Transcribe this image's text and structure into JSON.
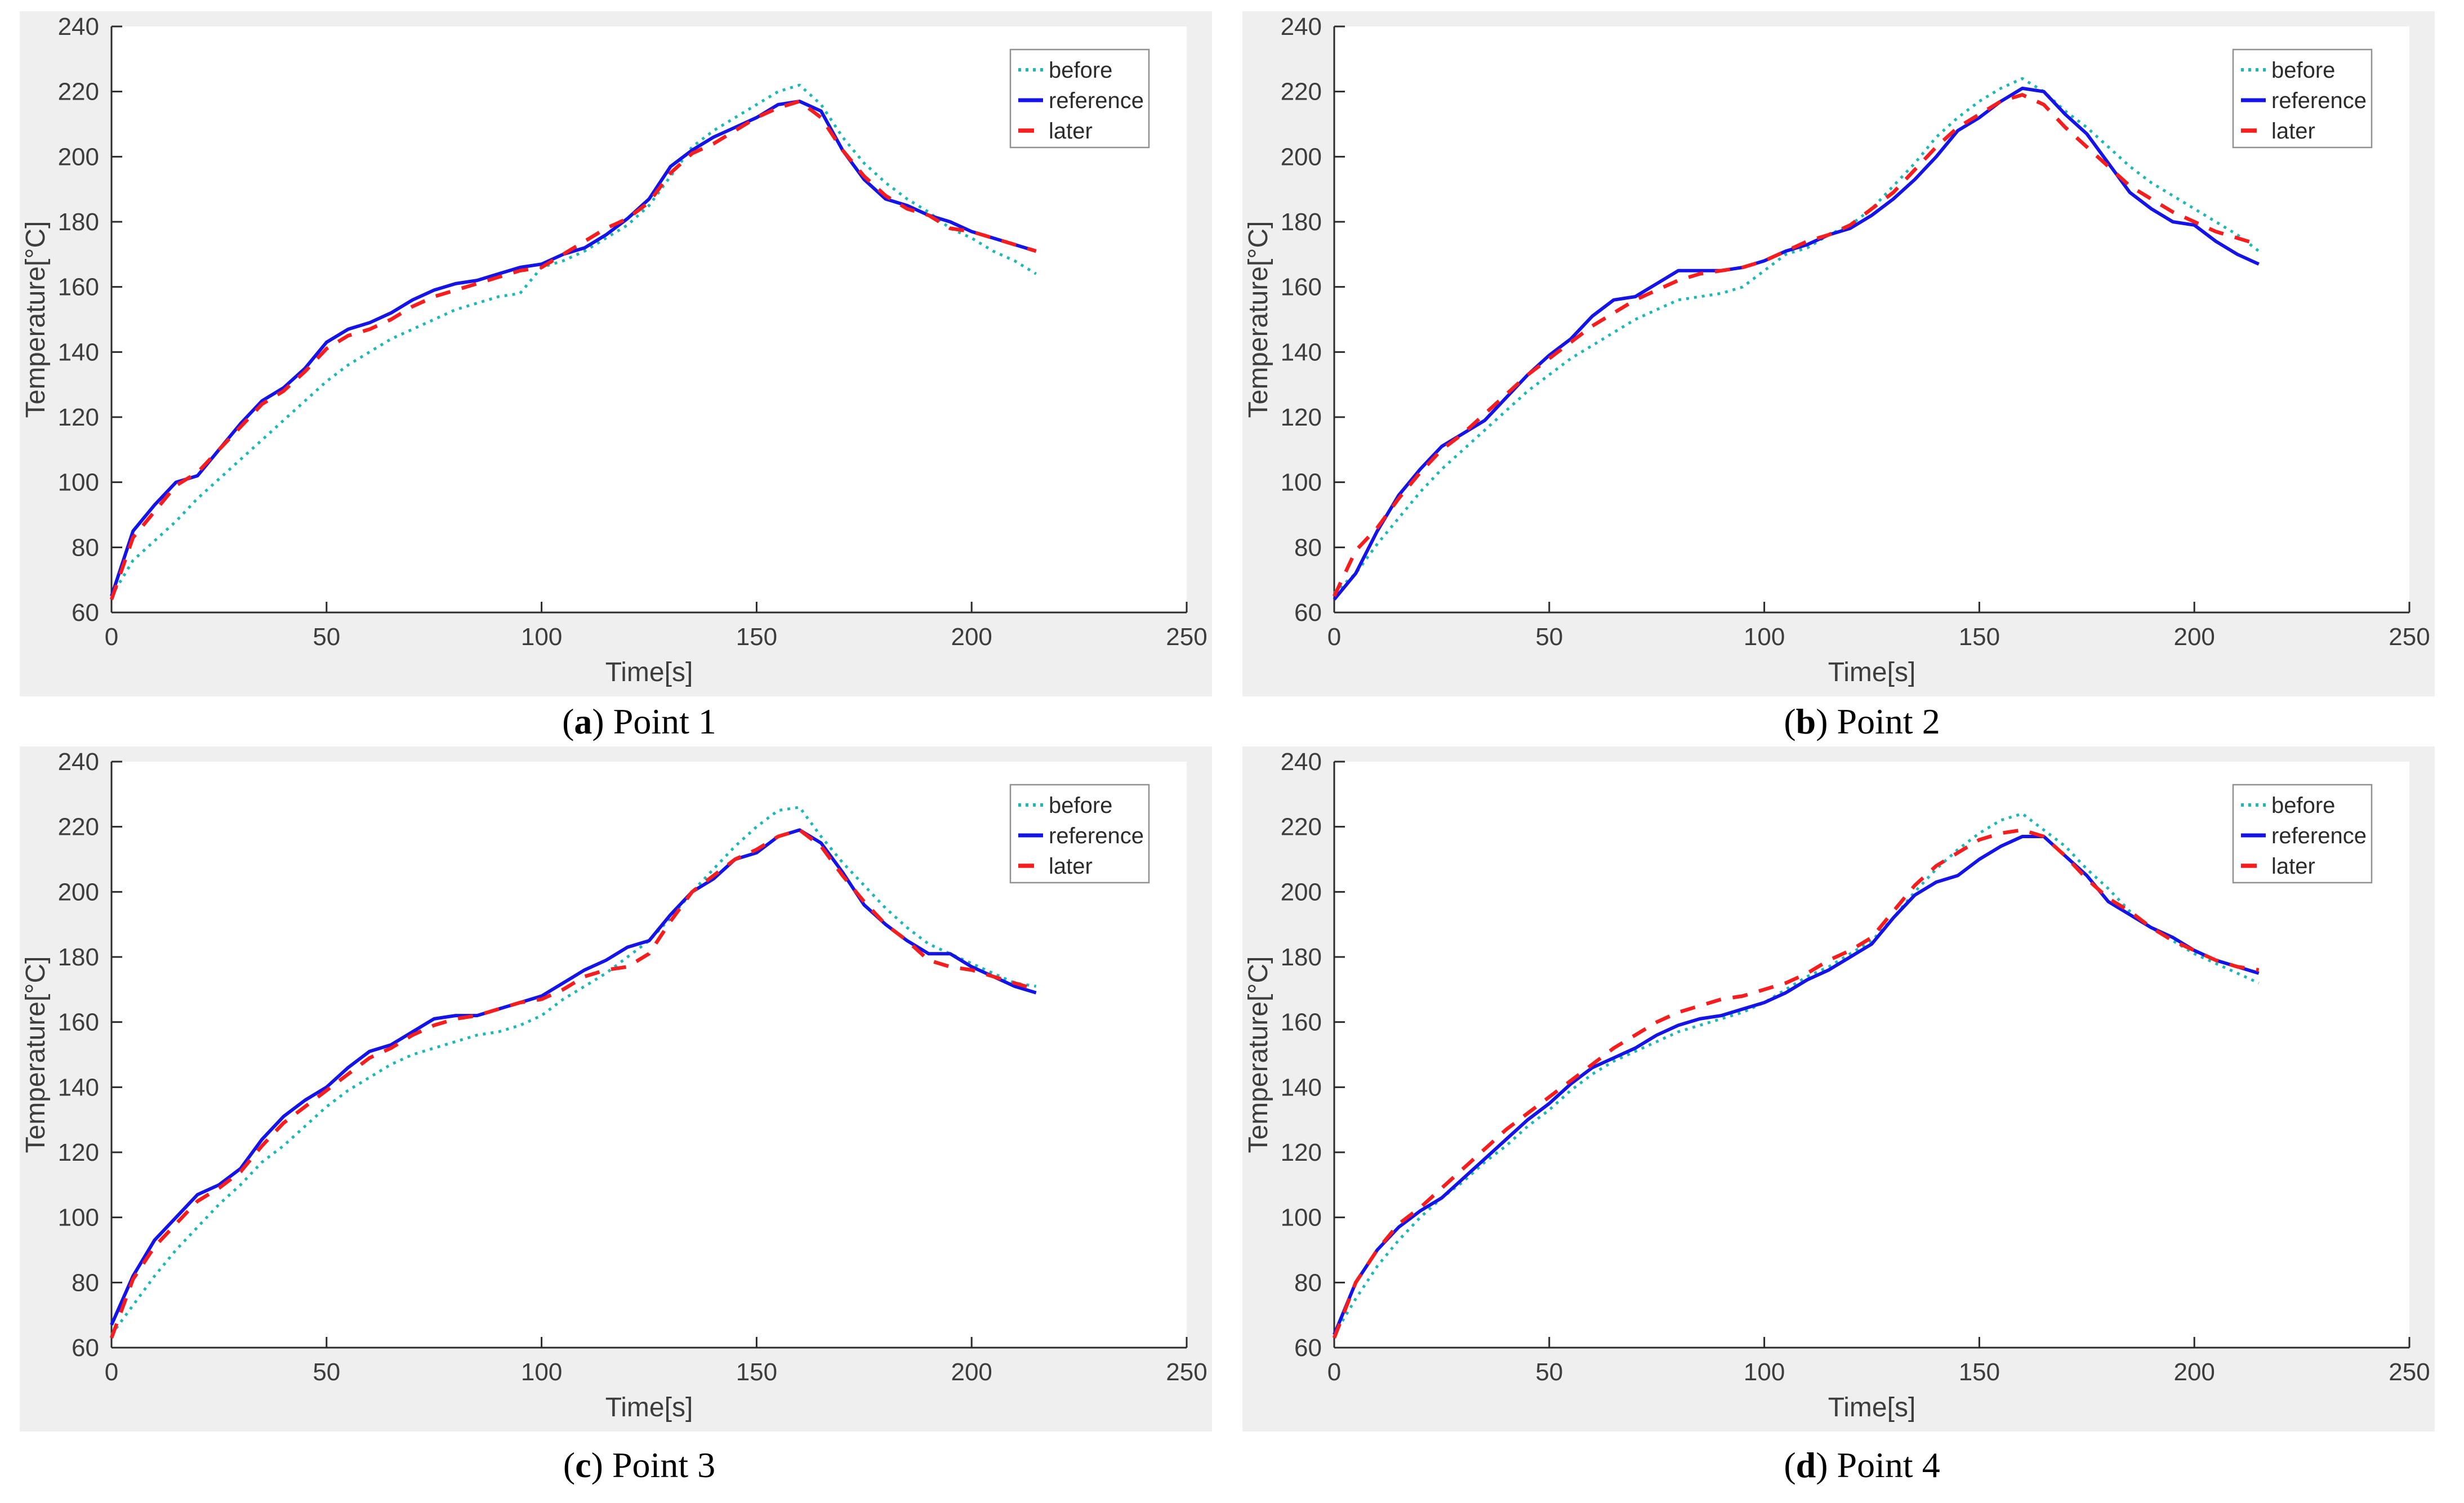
{
  "styles": {
    "figure_bg": "#efefef",
    "plot_bg": "#ffffff",
    "axis_color": "#2b2b2b",
    "tick_label_color": "#3d3d3d",
    "legend_border": "#909090",
    "legend_bg": "#ffffff",
    "caption_color": "#000000",
    "before_color": "#1cb8b5",
    "reference_color": "#1414e8",
    "later_color": "#f51d1d"
  },
  "chart_data": [
    {
      "type": "line",
      "panel": "a",
      "caption": {
        "open": "(",
        "letter": "a",
        "close": ") ",
        "title": "Point 1"
      },
      "xlabel": "Time[s]",
      "ylabel": "Temperature[°C]",
      "xlim": [
        0,
        250
      ],
      "ylim": [
        60,
        240
      ],
      "xticks": [
        0,
        50,
        100,
        150,
        200,
        250
      ],
      "yticks": [
        60,
        80,
        100,
        120,
        140,
        160,
        180,
        200,
        220,
        240
      ],
      "legend": {
        "position": "top-right",
        "entries": [
          "before",
          "reference",
          "later"
        ]
      },
      "x": [
        0,
        5,
        10,
        15,
        20,
        25,
        30,
        35,
        40,
        45,
        50,
        55,
        60,
        65,
        70,
        75,
        80,
        85,
        90,
        95,
        100,
        105,
        110,
        115,
        120,
        125,
        130,
        135,
        140,
        145,
        150,
        155,
        160,
        165,
        170,
        175,
        180,
        185,
        190,
        195,
        200,
        205,
        210,
        215
      ],
      "series": [
        {
          "name": "before",
          "style": "dotted",
          "color": "#1cb8b5",
          "values": [
            65,
            76,
            82,
            88,
            95,
            101,
            107,
            113,
            119,
            125,
            131,
            136,
            140,
            144,
            147,
            150,
            153,
            155,
            157,
            158,
            166,
            168,
            171,
            175,
            179,
            185,
            194,
            203,
            208,
            212,
            216,
            220,
            222,
            216,
            206,
            198,
            192,
            187,
            183,
            178,
            175,
            171,
            168,
            164
          ]
        },
        {
          "name": "reference",
          "style": "solid",
          "color": "#1414e8",
          "values": [
            65,
            85,
            93,
            100,
            102,
            110,
            118,
            125,
            129,
            135,
            143,
            147,
            149,
            152,
            156,
            159,
            161,
            162,
            164,
            166,
            167,
            170,
            172,
            176,
            181,
            187,
            197,
            202,
            206,
            209,
            212,
            216,
            217,
            214,
            202,
            193,
            187,
            185,
            182,
            180,
            177,
            175,
            173,
            171
          ]
        },
        {
          "name": "later",
          "style": "dashed",
          "color": "#f51d1d",
          "values": [
            64,
            83,
            91,
            99,
            103,
            110,
            117,
            124,
            128,
            134,
            141,
            145,
            147,
            150,
            154,
            157,
            159,
            161,
            163,
            165,
            166,
            170,
            174,
            178,
            181,
            186,
            195,
            201,
            204,
            208,
            212,
            215,
            217,
            212,
            202,
            194,
            188,
            184,
            182,
            178,
            177,
            175,
            173,
            171
          ]
        }
      ]
    },
    {
      "type": "line",
      "panel": "b",
      "caption": {
        "open": "(",
        "letter": "b",
        "close": ") ",
        "title": "Point 2"
      },
      "xlabel": "Time[s]",
      "ylabel": "Temperature[°C]",
      "xlim": [
        0,
        250
      ],
      "ylim": [
        60,
        240
      ],
      "xticks": [
        0,
        50,
        100,
        150,
        200,
        250
      ],
      "yticks": [
        60,
        80,
        100,
        120,
        140,
        160,
        180,
        200,
        220,
        240
      ],
      "legend": {
        "position": "top-right",
        "entries": [
          "before",
          "reference",
          "later"
        ]
      },
      "x": [
        0,
        5,
        10,
        15,
        20,
        25,
        30,
        35,
        40,
        45,
        50,
        55,
        60,
        65,
        70,
        75,
        80,
        85,
        90,
        95,
        100,
        105,
        110,
        115,
        120,
        125,
        130,
        135,
        140,
        145,
        150,
        155,
        160,
        165,
        170,
        175,
        180,
        185,
        190,
        195,
        200,
        205,
        210,
        215
      ],
      "series": [
        {
          "name": "before",
          "style": "dotted",
          "color": "#1cb8b5",
          "values": [
            66,
            72,
            81,
            89,
            97,
            104,
            110,
            116,
            122,
            128,
            133,
            138,
            142,
            146,
            150,
            153,
            156,
            157,
            158,
            160,
            165,
            170,
            172,
            176,
            179,
            184,
            191,
            198,
            206,
            212,
            217,
            221,
            224,
            220,
            214,
            209,
            203,
            197,
            192,
            188,
            184,
            180,
            176,
            171
          ]
        },
        {
          "name": "reference",
          "style": "solid",
          "color": "#1414e8",
          "values": [
            64,
            72,
            85,
            96,
            104,
            111,
            115,
            119,
            126,
            133,
            139,
            144,
            151,
            156,
            157,
            161,
            165,
            165,
            165,
            166,
            168,
            171,
            173,
            176,
            178,
            182,
            187,
            193,
            200,
            208,
            212,
            217,
            221,
            220,
            213,
            207,
            198,
            189,
            184,
            180,
            179,
            174,
            170,
            167
          ]
        },
        {
          "name": "later",
          "style": "dashed",
          "color": "#f51d1d",
          "values": [
            65,
            79,
            86,
            95,
            103,
            110,
            115,
            121,
            127,
            133,
            138,
            143,
            148,
            152,
            156,
            159,
            162,
            164,
            165,
            166,
            168,
            171,
            174,
            176,
            179,
            184,
            189,
            196,
            203,
            209,
            213,
            217,
            219,
            216,
            209,
            203,
            197,
            191,
            187,
            183,
            180,
            177,
            175,
            173
          ]
        }
      ]
    },
    {
      "type": "line",
      "panel": "c",
      "caption": {
        "open": "(",
        "letter": "c",
        "close": ") ",
        "title": "Point 3"
      },
      "xlabel": "Time[s]",
      "ylabel": "Temperature[°C]",
      "xlim": [
        0,
        250
      ],
      "ylim": [
        60,
        240
      ],
      "xticks": [
        0,
        50,
        100,
        150,
        200,
        250
      ],
      "yticks": [
        60,
        80,
        100,
        120,
        140,
        160,
        180,
        200,
        220,
        240
      ],
      "legend": {
        "position": "top-right",
        "entries": [
          "before",
          "reference",
          "later"
        ]
      },
      "x": [
        0,
        5,
        10,
        15,
        20,
        25,
        30,
        35,
        40,
        45,
        50,
        55,
        60,
        65,
        70,
        75,
        80,
        85,
        90,
        95,
        100,
        105,
        110,
        115,
        120,
        125,
        130,
        135,
        140,
        145,
        150,
        155,
        160,
        165,
        170,
        175,
        180,
        185,
        190,
        195,
        200,
        205,
        210,
        215
      ],
      "series": [
        {
          "name": "before",
          "style": "dotted",
          "color": "#1cb8b5",
          "values": [
            64,
            73,
            82,
            90,
            97,
            104,
            110,
            117,
            122,
            128,
            134,
            139,
            143,
            147,
            150,
            152,
            154,
            156,
            157,
            159,
            162,
            167,
            171,
            175,
            180,
            185,
            192,
            200,
            207,
            214,
            220,
            225,
            226,
            217,
            209,
            202,
            195,
            189,
            184,
            181,
            178,
            175,
            172,
            171
          ]
        },
        {
          "name": "reference",
          "style": "solid",
          "color": "#1414e8",
          "values": [
            67,
            82,
            93,
            100,
            107,
            110,
            115,
            124,
            131,
            136,
            140,
            146,
            151,
            153,
            157,
            161,
            162,
            162,
            164,
            166,
            168,
            172,
            176,
            179,
            183,
            185,
            193,
            200,
            204,
            210,
            212,
            217,
            219,
            215,
            206,
            196,
            190,
            185,
            181,
            181,
            177,
            174,
            171,
            169
          ]
        },
        {
          "name": "later",
          "style": "dashed",
          "color": "#f51d1d",
          "values": [
            63,
            81,
            91,
            98,
            105,
            109,
            114,
            122,
            129,
            134,
            139,
            144,
            149,
            152,
            156,
            159,
            161,
            162,
            164,
            166,
            167,
            170,
            174,
            176,
            177,
            181,
            191,
            200,
            205,
            210,
            213,
            217,
            219,
            214,
            205,
            197,
            190,
            185,
            179,
            177,
            176,
            174,
            172,
            170
          ]
        }
      ]
    },
    {
      "type": "line",
      "panel": "d",
      "caption": {
        "open": "(",
        "letter": "d",
        "close": ") ",
        "title": "Point 4"
      },
      "xlabel": "Time[s]",
      "ylabel": "Temperature[°C]",
      "xlim": [
        0,
        250
      ],
      "ylim": [
        60,
        240
      ],
      "xticks": [
        0,
        50,
        100,
        150,
        200,
        250
      ],
      "yticks": [
        60,
        80,
        100,
        120,
        140,
        160,
        180,
        200,
        220,
        240
      ],
      "legend": {
        "position": "top-right",
        "entries": [
          "before",
          "reference",
          "later"
        ]
      },
      "x": [
        0,
        5,
        10,
        15,
        20,
        25,
        30,
        35,
        40,
        45,
        50,
        55,
        60,
        65,
        70,
        75,
        80,
        85,
        90,
        95,
        100,
        105,
        110,
        115,
        120,
        125,
        130,
        135,
        140,
        145,
        150,
        155,
        160,
        165,
        170,
        175,
        180,
        185,
        190,
        195,
        200,
        205,
        210,
        215
      ],
      "series": [
        {
          "name": "before",
          "style": "dotted",
          "color": "#1cb8b5",
          "values": [
            64,
            75,
            85,
            93,
            100,
            106,
            111,
            117,
            122,
            128,
            133,
            139,
            144,
            148,
            151,
            154,
            157,
            159,
            161,
            163,
            166,
            170,
            174,
            177,
            181,
            185,
            192,
            200,
            207,
            213,
            218,
            222,
            224,
            219,
            214,
            207,
            201,
            194,
            189,
            185,
            181,
            178,
            175,
            172
          ]
        },
        {
          "name": "reference",
          "style": "solid",
          "color": "#1414e8",
          "values": [
            64,
            80,
            90,
            97,
            102,
            106,
            112,
            118,
            124,
            130,
            135,
            141,
            146,
            149,
            152,
            156,
            159,
            161,
            162,
            164,
            166,
            169,
            173,
            176,
            180,
            184,
            192,
            199,
            203,
            205,
            210,
            214,
            217,
            217,
            211,
            205,
            197,
            193,
            189,
            186,
            182,
            179,
            177,
            175
          ]
        },
        {
          "name": "later",
          "style": "dashed",
          "color": "#f51d1d",
          "values": [
            63,
            80,
            90,
            98,
            103,
            109,
            115,
            121,
            127,
            132,
            137,
            142,
            147,
            152,
            156,
            160,
            163,
            165,
            167,
            168,
            170,
            172,
            175,
            179,
            182,
            186,
            194,
            202,
            208,
            212,
            216,
            218,
            219,
            217,
            211,
            204,
            198,
            194,
            189,
            185,
            182,
            179,
            177,
            176
          ]
        }
      ]
    }
  ]
}
